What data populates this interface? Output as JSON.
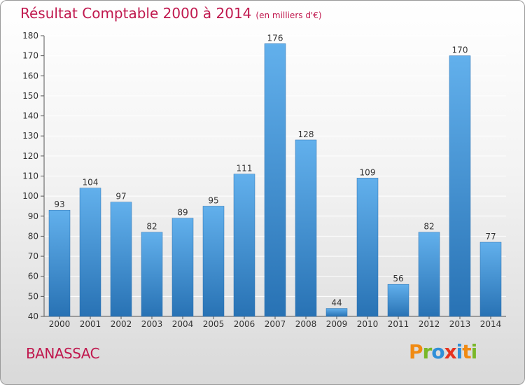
{
  "title": "Résultat Comptable 2000 à 2014",
  "subtitle": "(en milliers d'€)",
  "commune": "BANASSAC",
  "logo": {
    "letters": [
      "P",
      "r",
      "o",
      "x",
      "i",
      "t",
      "i"
    ],
    "colors": [
      "#f08a12",
      "#79b828",
      "#2f8fd8",
      "#e63320",
      "#2f8fd8",
      "#f08a12",
      "#79b828"
    ]
  },
  "chart_data": {
    "type": "bar",
    "title": "Résultat Comptable 2000 à 2014",
    "subtitle": "(en milliers d'€)",
    "xlabel": "",
    "ylabel": "",
    "categories": [
      "2000",
      "2001",
      "2002",
      "2003",
      "2004",
      "2005",
      "2006",
      "2007",
      "2008",
      "2009",
      "2010",
      "2011",
      "2012",
      "2013",
      "2014"
    ],
    "values": [
      93,
      104,
      97,
      82,
      89,
      95,
      111,
      176,
      128,
      44,
      109,
      56,
      82,
      170,
      77
    ],
    "ylim": [
      40,
      180
    ],
    "yticks": [
      40,
      50,
      60,
      70,
      80,
      90,
      100,
      110,
      120,
      130,
      140,
      150,
      160,
      170,
      180
    ],
    "grid": true,
    "colors": {
      "bar_top": "#62b0ec",
      "bar_bottom": "#2872b4",
      "grid": "#ffffff"
    }
  }
}
